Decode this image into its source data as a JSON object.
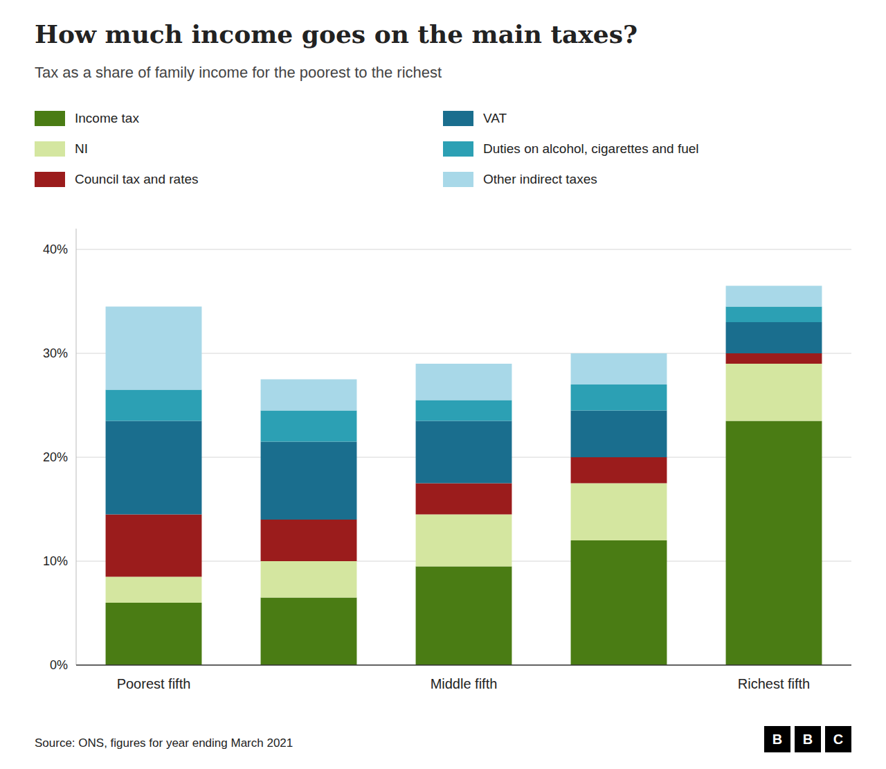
{
  "chart_data": {
    "type": "bar",
    "stacked": true,
    "title": "How much income goes on the main taxes?",
    "subtitle": "Tax as a share of family income for the poorest to the richest",
    "source": "Source: ONS, figures for year ending March 2021",
    "annotations": [
      "B",
      "B",
      "C"
    ],
    "categories": [
      "Poorest fifth",
      null,
      "Middle fifth",
      null,
      "Richest fifth"
    ],
    "series": [
      {
        "name": "Income tax",
        "color": "#4a7c14",
        "values": [
          6.0,
          6.5,
          9.5,
          12.0,
          23.5
        ]
      },
      {
        "name": "NI",
        "color": "#d4e6a0",
        "values": [
          2.5,
          3.5,
          5.0,
          5.5,
          5.5
        ]
      },
      {
        "name": "Council tax and rates",
        "color": "#9b1c1c",
        "values": [
          6.0,
          4.0,
          3.0,
          2.5,
          1.0
        ]
      },
      {
        "name": "VAT",
        "color": "#1a6e8e",
        "values": [
          9.0,
          7.5,
          6.0,
          4.5,
          3.0
        ]
      },
      {
        "name": "Duties on alcohol, cigarettes and fuel",
        "color": "#2ca0b4",
        "values": [
          3.0,
          3.0,
          2.0,
          2.5,
          1.5
        ]
      },
      {
        "name": "Other indirect taxes",
        "color": "#a8d8e8",
        "values": [
          8.0,
          3.0,
          3.5,
          3.0,
          2.0
        ]
      }
    ],
    "ylim": [
      0,
      42
    ],
    "yticks": [
      {
        "value": 0,
        "label": "0%"
      },
      {
        "value": 10,
        "label": "10%"
      },
      {
        "value": 20,
        "label": "20%"
      },
      {
        "value": 30,
        "label": "30%"
      },
      {
        "value": 40,
        "label": "40%"
      }
    ],
    "grid": true,
    "legend": "upper left"
  }
}
